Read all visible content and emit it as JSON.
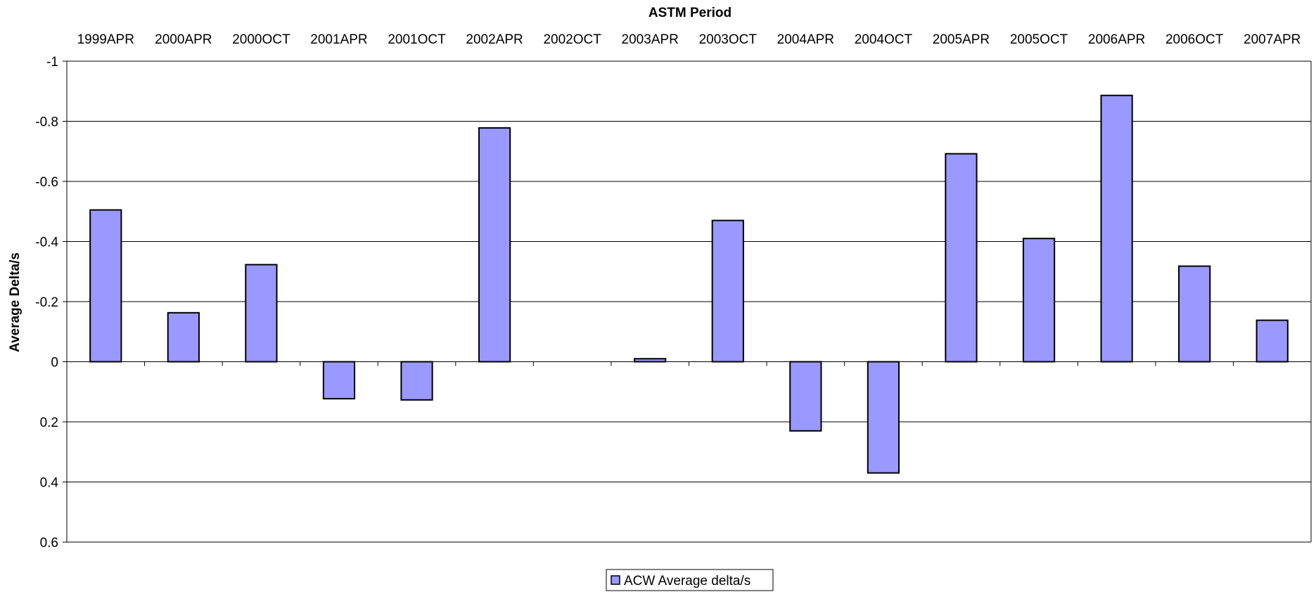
{
  "chart_data": {
    "type": "bar",
    "title": "",
    "xlabel": "ASTM Period",
    "ylabel": "Average Delta/s",
    "xaxis_position": "top",
    "y_reversed": true,
    "ylim": [
      -1,
      0.6
    ],
    "yticks": [
      -1,
      -0.8,
      -0.6,
      -0.4,
      -0.2,
      0,
      0.2,
      0.4,
      0.6
    ],
    "ytick_labels": [
      "-1",
      "-0.8",
      "-0.6",
      "-0.4",
      "-0.2",
      "0",
      "0.2",
      "0.4",
      "0.6"
    ],
    "grid": true,
    "legend_position": "bottom",
    "categories": [
      "1999APR",
      "2000APR",
      "2000OCT",
      "2001APR",
      "2001OCT",
      "2002APR",
      "2002OCT",
      "2003APR",
      "2003OCT",
      "2004APR",
      "2004OCT",
      "2005APR",
      "2005OCT",
      "2006APR",
      "2006OCT",
      "2007APR"
    ],
    "series": [
      {
        "name": "ACW Average delta/s",
        "color": "#9999ff",
        "values": [
          -0.505,
          -0.163,
          -0.323,
          0.123,
          0.127,
          -0.778,
          0,
          -0.01,
          -0.47,
          0.23,
          0.37,
          -0.692,
          -0.41,
          -0.886,
          -0.318,
          -0.138
        ]
      }
    ]
  }
}
